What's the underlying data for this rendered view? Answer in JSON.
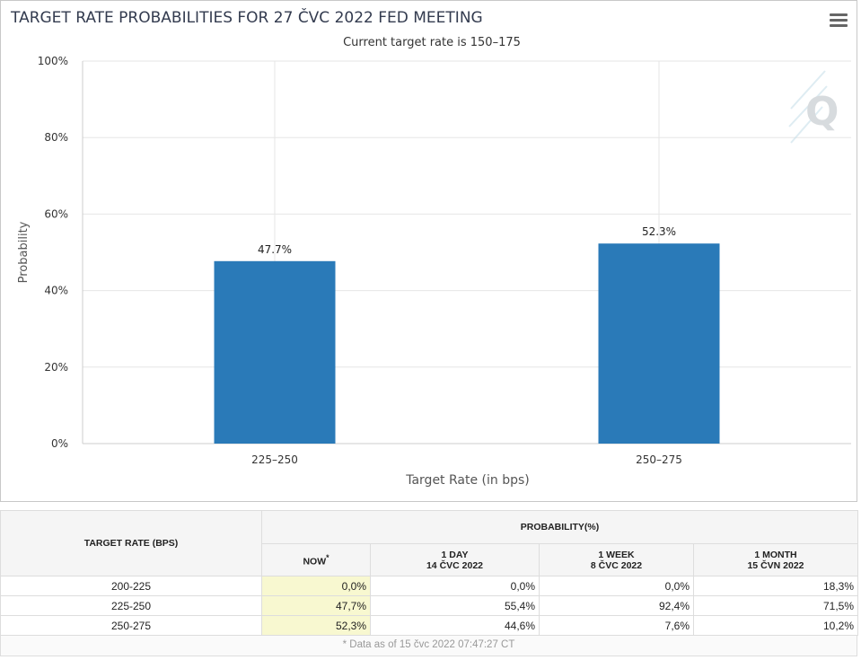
{
  "chart_data": {
    "type": "bar",
    "title": "TARGET RATE PROBABILITIES FOR 27 ČVC 2022 FED MEETING",
    "subtitle": "Current target rate is 150–175",
    "xlabel": "Target Rate (in bps)",
    "ylabel": "Probability",
    "categories": [
      "225–250",
      "250–275"
    ],
    "values": [
      47.7,
      52.3
    ],
    "data_labels": [
      "47.7%",
      "52.3%"
    ],
    "ylim": [
      0,
      100
    ],
    "yticks": [
      0,
      20,
      40,
      60,
      80,
      100
    ],
    "ytick_labels": [
      "0%",
      "20%",
      "40%",
      "60%",
      "80%",
      "100%"
    ],
    "grid": true,
    "bar_color": "#2a7ab8"
  },
  "header": {
    "menu_icon": "hamburger-menu-icon",
    "watermark_icon": "q-logo-icon"
  },
  "table": {
    "col_target": "TARGET RATE (BPS)",
    "col_prob": "PROBABILITY(%)",
    "sub_cols": [
      {
        "line1": "NOW",
        "line2": "",
        "marker": "*"
      },
      {
        "line1": "1 DAY",
        "line2": "14 ČVC 2022",
        "marker": ""
      },
      {
        "line1": "1 WEEK",
        "line2": "8 ČVC 2022",
        "marker": ""
      },
      {
        "line1": "1 MONTH",
        "line2": "15 ČVN 2022",
        "marker": ""
      }
    ],
    "rows": [
      {
        "rate": "200-225",
        "now": "0,0%",
        "day": "0,0%",
        "week": "0,0%",
        "month": "18,3%"
      },
      {
        "rate": "225-250",
        "now": "47,7%",
        "day": "55,4%",
        "week": "92,4%",
        "month": "71,5%"
      },
      {
        "rate": "250-275",
        "now": "52,3%",
        "day": "44,6%",
        "week": "7,6%",
        "month": "10,2%"
      }
    ],
    "footnote": "* Data as of 15 čvc 2022 07:47:27 CT"
  }
}
